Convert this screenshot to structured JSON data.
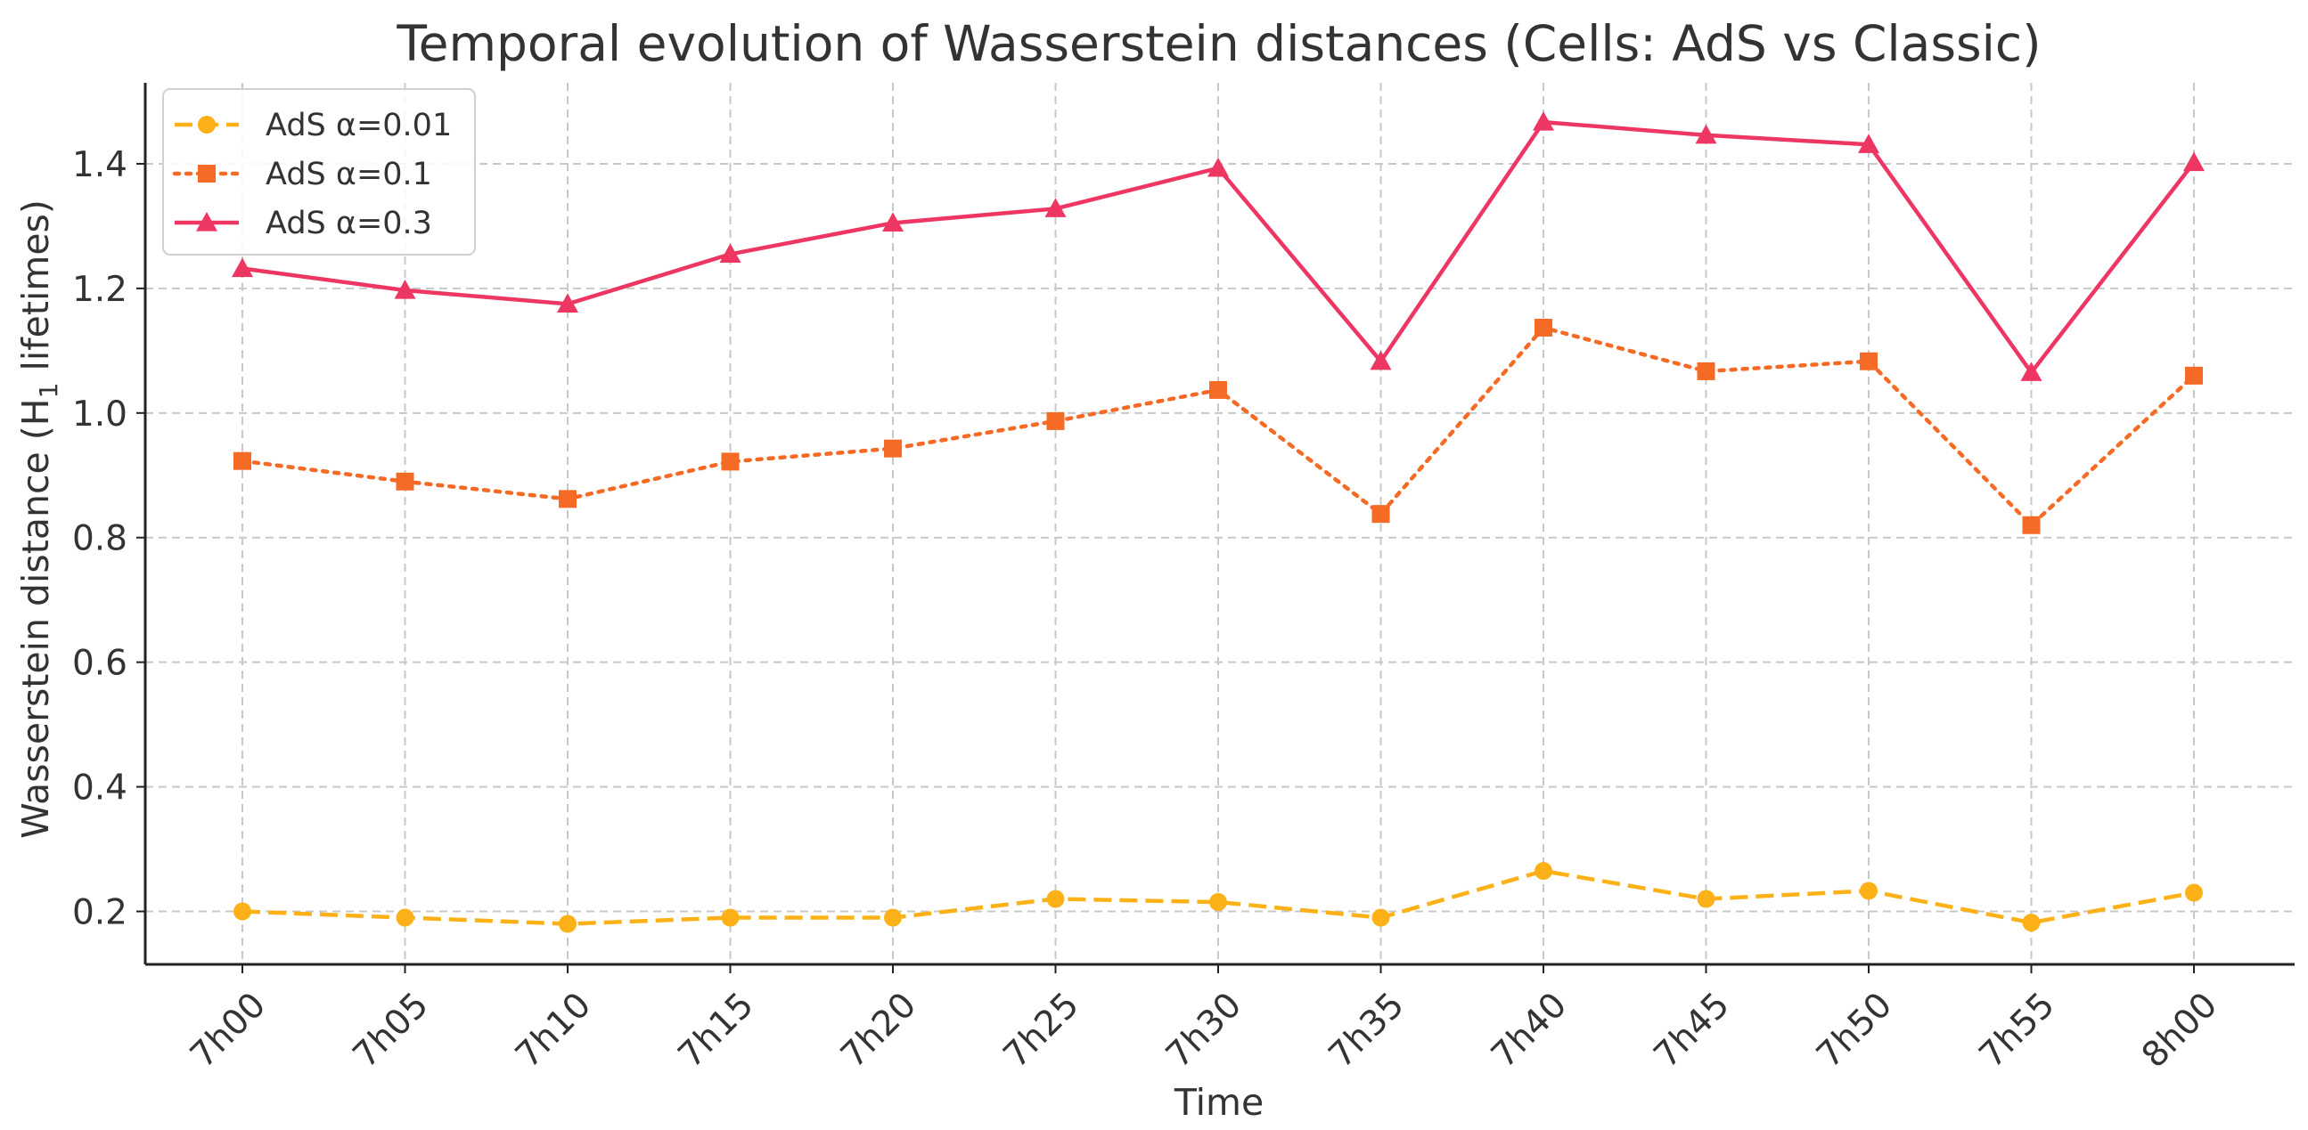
{
  "chart_data": {
    "type": "line",
    "title": "Temporal evolution of Wasserstein distances (Cells: AdS vs Classic)",
    "xlabel": "Time",
    "ylabel": "Wasserstein distance (H",
    "ylabel_subscript": "1",
    "ylabel_suffix": " lifetimes)",
    "categories": [
      "7h00",
      "7h05",
      "7h10",
      "7h15",
      "7h20",
      "7h25",
      "7h30",
      "7h35",
      "7h40",
      "7h45",
      "7h50",
      "7h55",
      "8h00"
    ],
    "ylim": [
      0.115,
      1.53
    ],
    "yticks": [
      0.2,
      0.4,
      0.6,
      0.8,
      1.0,
      1.2,
      1.4
    ],
    "ytick_labels": [
      "0.2",
      "0.4",
      "0.6",
      "0.8",
      "1.0",
      "1.2",
      "1.4"
    ],
    "grid": true,
    "legend_position": "top-left",
    "series": [
      {
        "name": "AdS α=0.01",
        "color": "#FBB117",
        "linestyle": "dashed",
        "marker": "circle",
        "values": [
          0.2,
          0.19,
          0.18,
          0.19,
          0.19,
          0.22,
          0.215,
          0.19,
          0.265,
          0.22,
          0.233,
          0.182,
          0.23
        ]
      },
      {
        "name": "AdS α=0.1",
        "color": "#F56A24",
        "linestyle": "dotted",
        "marker": "square",
        "values": [
          0.923,
          0.89,
          0.862,
          0.922,
          0.943,
          0.987,
          1.037,
          0.838,
          1.137,
          1.067,
          1.083,
          0.82,
          1.06
        ]
      },
      {
        "name": "AdS α=0.3",
        "color": "#EE3663",
        "linestyle": "solid",
        "marker": "triangle",
        "values": [
          1.232,
          1.197,
          1.175,
          1.255,
          1.305,
          1.328,
          1.393,
          1.083,
          1.467,
          1.446,
          1.431,
          1.065,
          1.402
        ]
      }
    ]
  }
}
